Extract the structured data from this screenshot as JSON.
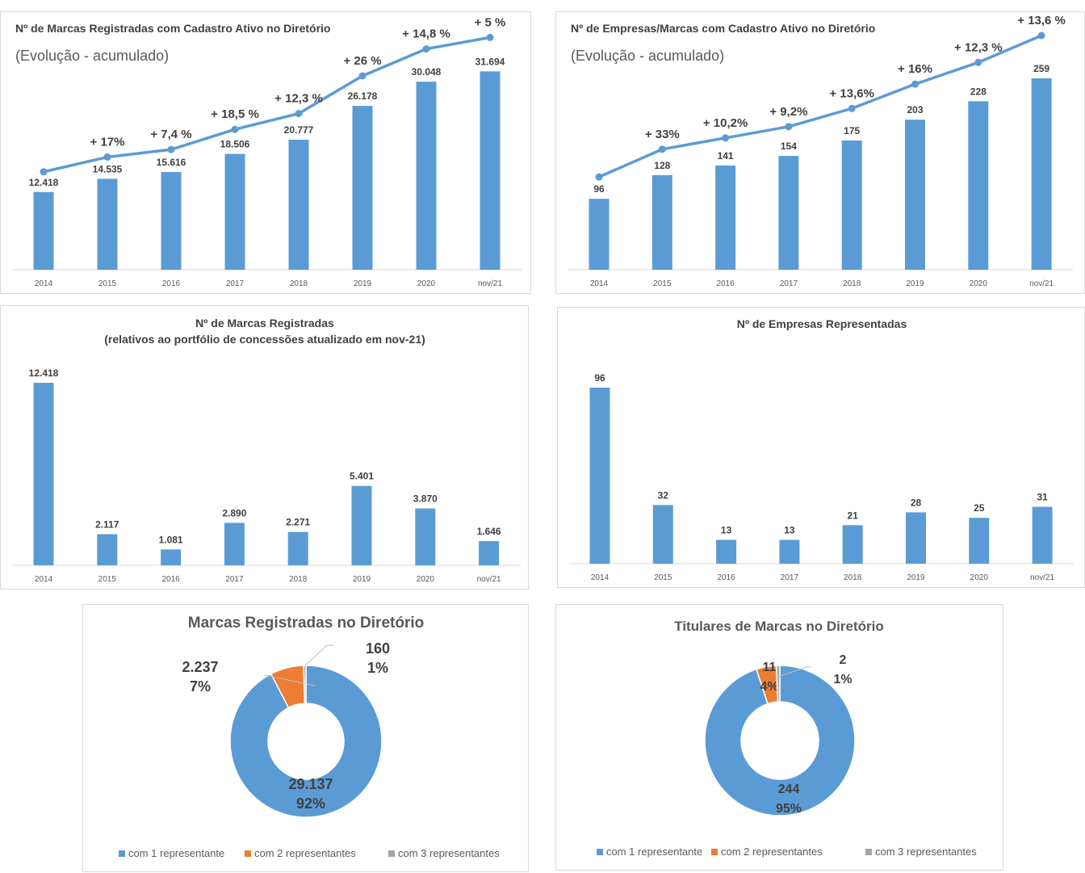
{
  "colors": {
    "bar": "#5b9bd5",
    "line": "#5b9bd5",
    "orange": "#ed7d31",
    "gray": "#a5a5a5",
    "text": "#404040",
    "axis": "#595959"
  },
  "chart_data": [
    {
      "type": "bar",
      "title": "Nº de Marcas Registradas com Cadastro Ativo no Diretório",
      "subtitle": "(Evolução - acumulado)",
      "categories": [
        "2014",
        "2015",
        "2016",
        "2017",
        "2018",
        "2019",
        "2020",
        "nov/21"
      ],
      "values": [
        12418,
        14535,
        15616,
        18506,
        20777,
        26178,
        30048,
        31694
      ],
      "data_labels": [
        "12.418",
        "14.535",
        "15.616",
        "18.506",
        "20.777",
        "26.178",
        "30.048",
        "31.694"
      ],
      "trend_line_labels": [
        "",
        "+ 17%",
        "+ 7,4 %",
        "+ 18,5 %",
        "+ 12,3 %",
        "+ 26 %",
        "+ 14,8 %",
        "+ 5 %"
      ],
      "ylim": [
        0,
        32000
      ],
      "grid": false,
      "legend": "none"
    },
    {
      "type": "bar",
      "title": "Nº de Empresas/Marcas com Cadastro Ativo no Diretório",
      "subtitle": "(Evolução - acumulado)",
      "categories": [
        "2014",
        "2015",
        "2016",
        "2017",
        "2018",
        "2019",
        "2020",
        "nov/21"
      ],
      "values": [
        96,
        128,
        141,
        154,
        175,
        203,
        228,
        259
      ],
      "data_labels": [
        "96",
        "128",
        "141",
        "154",
        "175",
        "203",
        "228",
        "259"
      ],
      "trend_line_labels": [
        "",
        "+ 33%",
        "+ 10,2%",
        "+ 9,2%",
        "+ 13,6%",
        "+ 16%",
        "+ 12,3 %",
        "+ 13,6 %"
      ],
      "ylim": [
        0,
        260
      ],
      "grid": false,
      "legend": "none"
    },
    {
      "type": "bar",
      "title": "Nº de Marcas Registradas",
      "subtitle": "(relativos ao portfólio de concessões atualizado em nov-21)",
      "categories": [
        "2014",
        "2015",
        "2016",
        "2017",
        "2018",
        "2019",
        "2020",
        "nov/21"
      ],
      "values": [
        12418,
        2117,
        1081,
        2890,
        2271,
        5401,
        3870,
        1646
      ],
      "data_labels": [
        "12.418",
        "2.117",
        "1.081",
        "2.890",
        "2.271",
        "5.401",
        "3.870",
        "1.646"
      ],
      "ylim": [
        0,
        12418
      ],
      "grid": false,
      "legend": "none"
    },
    {
      "type": "bar",
      "title": "Nº de Empresas Representadas",
      "categories": [
        "2014",
        "2015",
        "2016",
        "2017",
        "2018",
        "2019",
        "2020",
        "nov/21"
      ],
      "values": [
        96,
        32,
        13,
        13,
        21,
        28,
        25,
        31
      ],
      "data_labels": [
        "96",
        "32",
        "13",
        "13",
        "21",
        "28",
        "25",
        "31"
      ],
      "ylim": [
        0,
        96
      ],
      "grid": false,
      "legend": "none"
    },
    {
      "type": "pie",
      "donut": true,
      "title": "Marcas Registradas no Diretório",
      "categories": [
        "com 1 representante",
        "com 2 representantes",
        "com 3 representantes"
      ],
      "values": [
        29137,
        2237,
        160
      ],
      "value_labels": [
        "29.137",
        "2.237",
        "160"
      ],
      "percent_labels": [
        "92%",
        "7%",
        "1%"
      ],
      "colors": [
        "#5b9bd5",
        "#ed7d31",
        "#a5a5a5"
      ],
      "legend": "bottom"
    },
    {
      "type": "pie",
      "donut": true,
      "title": "Titulares de Marcas no Diretório",
      "categories": [
        "com 1 representante",
        "com 2 representantes",
        "com 3 representantes"
      ],
      "values": [
        244,
        11,
        2
      ],
      "value_labels": [
        "244",
        "11",
        "2"
      ],
      "percent_labels": [
        "95%",
        "4%",
        "1%"
      ],
      "colors": [
        "#5b9bd5",
        "#ed7d31",
        "#a5a5a5"
      ],
      "legend": "bottom"
    }
  ]
}
